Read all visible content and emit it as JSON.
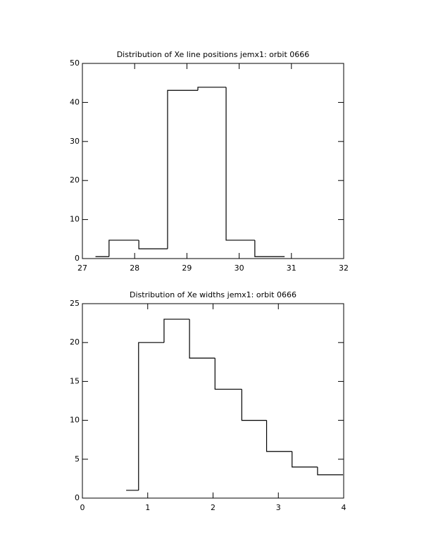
{
  "chart_data": [
    {
      "type": "histogram",
      "title": "Distribution of Xe line positions jemx1: orbit 0666",
      "bins": [
        27.25,
        27.51,
        28.08,
        28.63,
        29.21,
        29.75,
        30.3,
        30.87
      ],
      "values": [
        0.5,
        4.7,
        2.5,
        43.1,
        43.9,
        4.7,
        0.5
      ],
      "color": "#000000",
      "xlim": [
        27,
        32
      ],
      "xticks": [
        27,
        28,
        29,
        30,
        31,
        32
      ],
      "ylim": [
        0,
        50
      ],
      "yticks": [
        0,
        10,
        20,
        30,
        40,
        50
      ]
    },
    {
      "type": "histogram",
      "title": "Distribution of Xe widths jemx1: orbit 0666",
      "bins": [
        0.67,
        0.86,
        1.25,
        1.64,
        2.03,
        2.44,
        2.82,
        3.21,
        3.6,
        3.99
      ],
      "values": [
        1,
        20,
        23,
        18,
        14,
        10,
        6,
        4,
        3
      ],
      "color": "#000000",
      "xlim": [
        0,
        4
      ],
      "xticks": [
        0,
        1,
        2,
        3,
        4
      ],
      "ylim": [
        0,
        25
      ],
      "yticks": [
        0,
        5,
        10,
        15,
        20,
        25
      ]
    }
  ]
}
